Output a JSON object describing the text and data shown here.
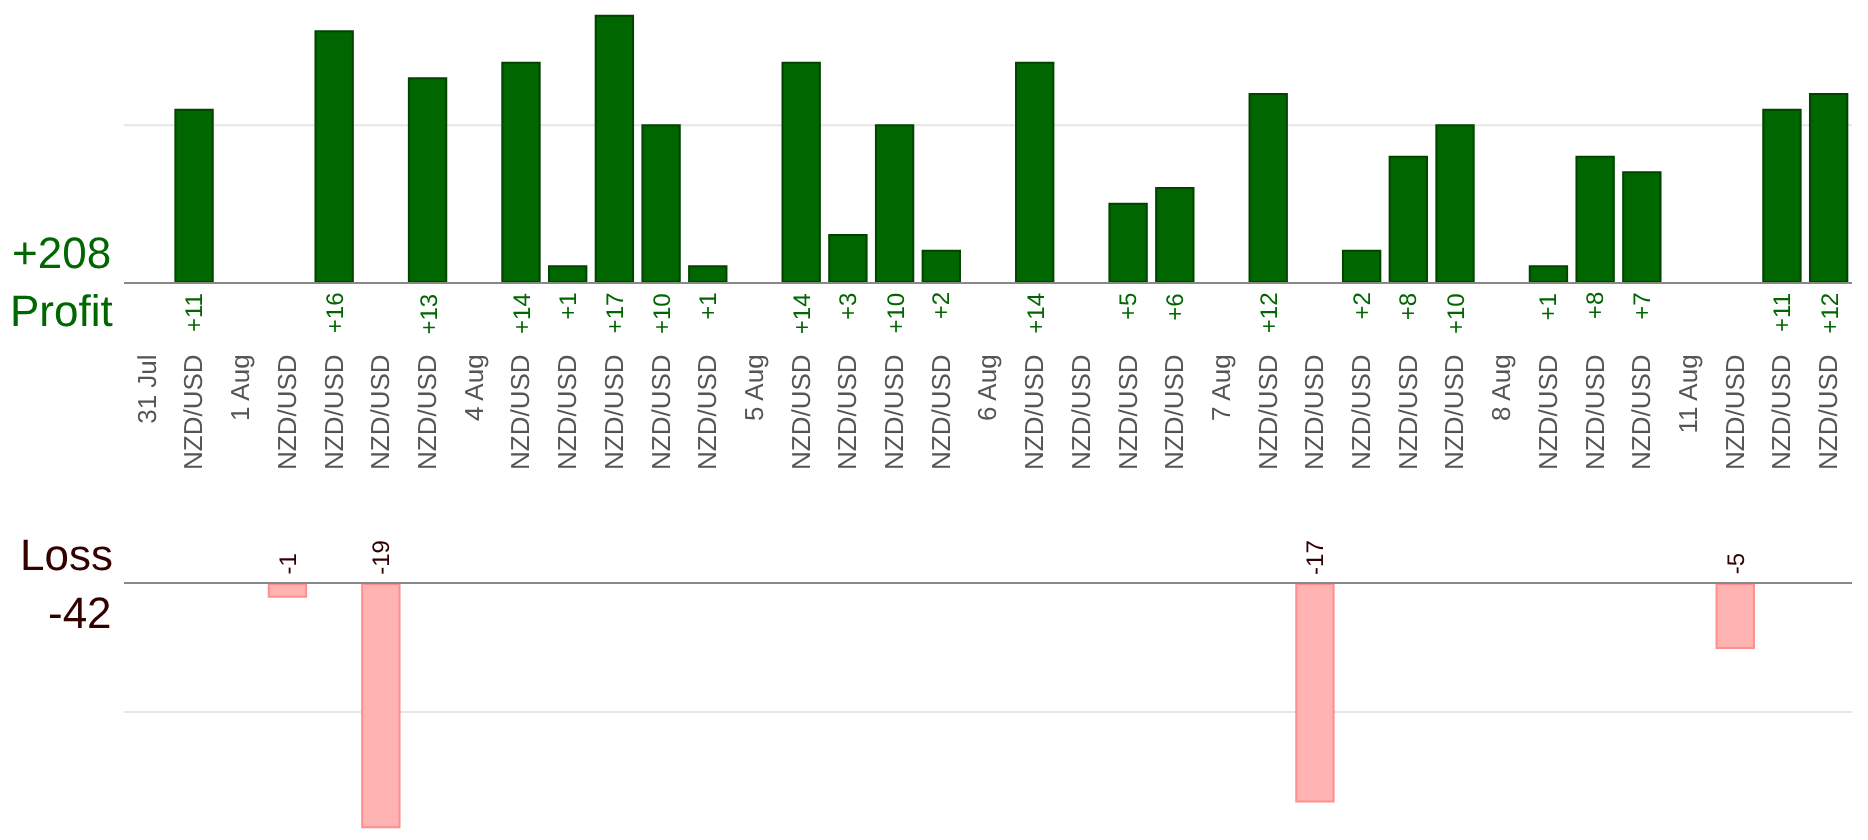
{
  "chart_data": [
    {
      "type": "bar",
      "categories": [
        "31 Jul",
        "NZD/USD",
        "1 Aug",
        "NZD/USD",
        "NZD/USD",
        "NZD/USD",
        "NZD/USD",
        "4 Aug",
        "NZD/USD",
        "NZD/USD",
        "NZD/USD",
        "NZD/USD",
        "NZD/USD",
        "5 Aug",
        "NZD/USD",
        "NZD/USD",
        "NZD/USD",
        "NZD/USD",
        "6 Aug",
        "NZD/USD",
        "NZD/USD",
        "NZD/USD",
        "NZD/USD",
        "7 Aug",
        "NZD/USD",
        "NZD/USD",
        "NZD/USD",
        "NZD/USD",
        "NZD/USD",
        "8 Aug",
        "NZD/USD",
        "NZD/USD",
        "NZD/USD",
        "11 Aug",
        "NZD/USD",
        "NZD/USD",
        "NZD/USD"
      ],
      "color": "#006600",
      "values": [
        null,
        11,
        null,
        null,
        16,
        null,
        13,
        null,
        14,
        1,
        17,
        10,
        1,
        null,
        14,
        3,
        10,
        2,
        null,
        14,
        null,
        5,
        6,
        null,
        12,
        null,
        2,
        8,
        10,
        null,
        1,
        8,
        7,
        null,
        null,
        11,
        12
      ],
      "value_labels": [
        null,
        "+11",
        null,
        null,
        "+16",
        null,
        "+13",
        null,
        "+14",
        "+1",
        "+17",
        "+10",
        "+1",
        null,
        "+14",
        "+3",
        "+10",
        "+2",
        null,
        "+14",
        null,
        "+5",
        "+6",
        null,
        "+12",
        null,
        "+2",
        "+8",
        "+10",
        null,
        "+1",
        "+8",
        "+7",
        null,
        null,
        "+11",
        "+12"
      ],
      "ylim": [
        0,
        18
      ],
      "ref_lines": [
        {
          "axis": "y",
          "value": 10,
          "color": "#e6e6e6"
        }
      ],
      "tick_labels": "x",
      "annotations": [
        "+208",
        "Profit"
      ]
    },
    {
      "type": "bar",
      "categories": [
        null,
        null,
        null,
        null,
        null,
        null,
        null,
        null,
        null,
        null,
        null,
        null,
        null,
        null,
        null,
        null,
        null,
        null,
        null,
        null,
        null,
        null,
        null,
        null,
        null,
        null,
        null,
        null,
        null,
        null,
        null,
        null,
        null,
        null,
        null,
        null,
        null
      ],
      "color": "#ffb3b3",
      "values": [
        null,
        null,
        null,
        -1,
        null,
        -19,
        null,
        null,
        null,
        null,
        null,
        null,
        null,
        null,
        null,
        null,
        null,
        null,
        null,
        null,
        null,
        null,
        null,
        null,
        null,
        -17,
        null,
        null,
        null,
        null,
        null,
        null,
        null,
        null,
        -5,
        null,
        null
      ],
      "data_labels": true,
      "ylim": [
        -20,
        0
      ],
      "ref_lines": [
        {
          "axis": "y",
          "value": -10,
          "color": "#e6e6e6"
        }
      ],
      "tick_labels": false,
      "annotations": [
        "Loss",
        "-42"
      ]
    }
  ]
}
